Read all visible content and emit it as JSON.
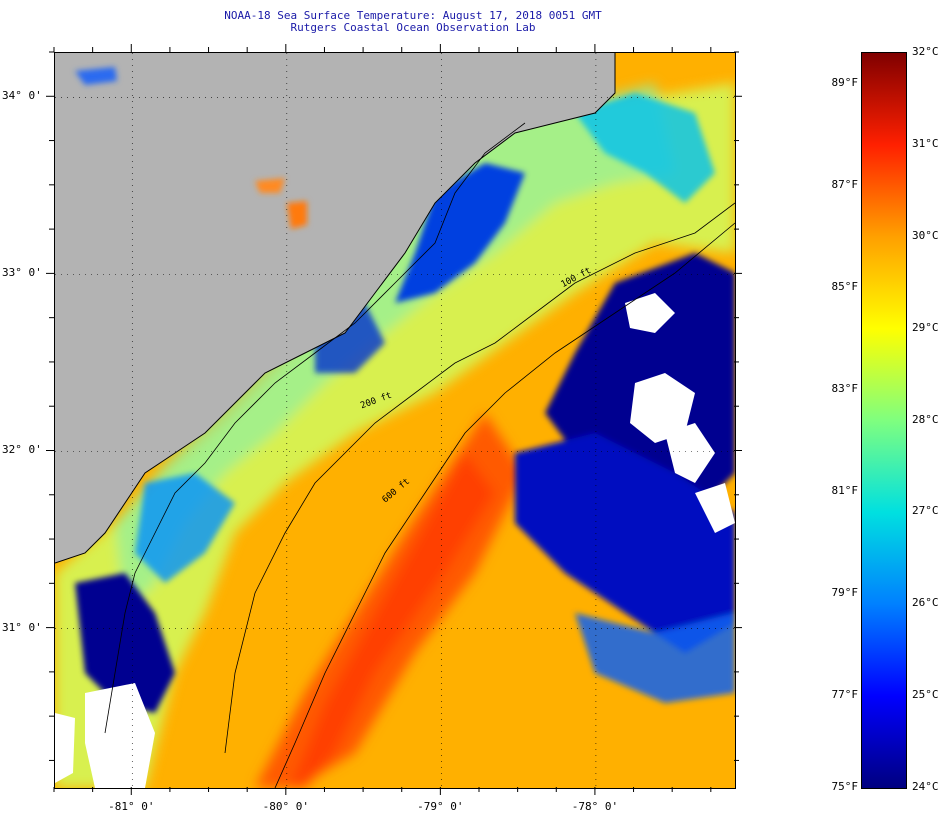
{
  "title": {
    "line1": "NOAA-18 Sea Surface Temperature:  August 17, 2018 0051 GMT",
    "line2": "Rutgers Coastal Ocean Observation Lab"
  },
  "map": {
    "lat_labels": [
      {
        "value": 34,
        "text": "34° 0'"
      },
      {
        "value": 33,
        "text": "33° 0'"
      },
      {
        "value": 32,
        "text": "32° 0'"
      },
      {
        "value": 31,
        "text": "31° 0'"
      }
    ],
    "lon_labels": [
      {
        "value": -81,
        "text": "-81° 0'"
      },
      {
        "value": -80,
        "text": "-80° 0'"
      },
      {
        "value": -79,
        "text": "-79° 0'"
      },
      {
        "value": -78,
        "text": "-78° 0'"
      }
    ],
    "lon_range": [
      -81.5,
      -77.1
    ],
    "lat_range": [
      30.1,
      34.25
    ],
    "isobath_labels": [
      "100 ft",
      "200 ft",
      "600 ft"
    ],
    "colors": {
      "land": "#b3b3b3",
      "cloud": "#ffffff",
      "coast": "#000000",
      "grid": "#000000"
    }
  },
  "colorbar": {
    "fahrenheit": [
      {
        "value": 89,
        "text": "89°F"
      },
      {
        "value": 87,
        "text": "87°F"
      },
      {
        "value": 85,
        "text": "85°F"
      },
      {
        "value": 83,
        "text": "83°F"
      },
      {
        "value": 81,
        "text": "81°F"
      },
      {
        "value": 79,
        "text": "79°F"
      },
      {
        "value": 77,
        "text": "77°F"
      },
      {
        "value": 75,
        "text": "75°F"
      }
    ],
    "celsius": [
      {
        "value": 32,
        "text": "32°C"
      },
      {
        "value": 31,
        "text": "31°C"
      },
      {
        "value": 30,
        "text": "30°C"
      },
      {
        "value": 29,
        "text": "29°C"
      },
      {
        "value": 28,
        "text": "28°C"
      },
      {
        "value": 27,
        "text": "27°C"
      },
      {
        "value": 26,
        "text": "26°C"
      },
      {
        "value": 25,
        "text": "25°C"
      },
      {
        "value": 24,
        "text": "24°C"
      }
    ],
    "range_c": [
      24,
      32
    ],
    "gradient": [
      "#000080",
      "#0000ff",
      "#0080ff",
      "#00e0e0",
      "#7fff7f",
      "#ffff00",
      "#ffa000",
      "#ff2000",
      "#800000"
    ]
  }
}
